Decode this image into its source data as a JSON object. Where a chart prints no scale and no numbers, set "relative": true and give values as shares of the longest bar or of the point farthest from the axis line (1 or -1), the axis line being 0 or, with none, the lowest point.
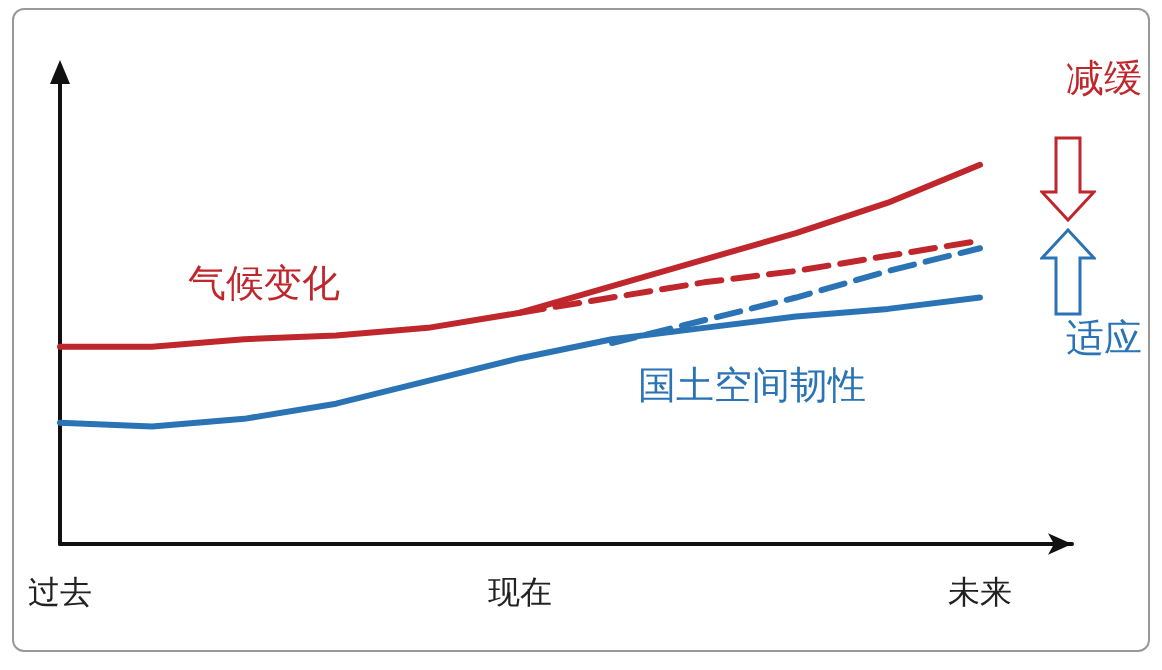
{
  "chart_data": {
    "type": "line",
    "relative": true,
    "categories": [
      "过去",
      null,
      null,
      null,
      null,
      "现在",
      null,
      null,
      null,
      null,
      "未来",
      null
    ],
    "series": [
      {
        "name": "气候变化",
        "color": "#c0272d",
        "line_style": "solid",
        "values": [
          0.52,
          0.52,
          0.54,
          0.55,
          0.57,
          0.61,
          0.68,
          0.75,
          0.82,
          0.9,
          1,
          null
        ]
      },
      {
        "color": "#c0272d",
        "line_style": "dashed",
        "values": [
          null,
          null,
          null,
          null,
          null,
          0.61,
          0.65,
          0.69,
          0.72,
          0.76,
          0.8,
          null
        ]
      },
      {
        "name": "国土空间韧性",
        "color": "#2a74b5",
        "line_style": "solid",
        "values": [
          0.32,
          0.31,
          0.33,
          0.37,
          0.43,
          0.49,
          0.54,
          0.57,
          0.6,
          0.62,
          0.65,
          null
        ]
      },
      {
        "color": "#2a74b5",
        "line_style": "dashed",
        "values": [
          null,
          null,
          null,
          null,
          null,
          null,
          0.53,
          0.59,
          0.65,
          0.72,
          0.78,
          null
        ]
      }
    ],
    "annotations": [
      "减缓",
      "适应"
    ],
    "grid": false,
    "legend": false
  }
}
